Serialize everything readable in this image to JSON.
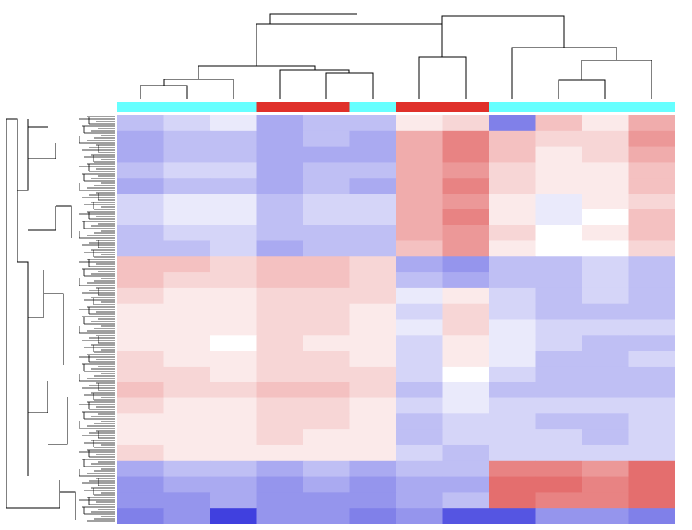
{
  "chart_data": {
    "type": "heatmap",
    "vlim": [
      -1,
      1
    ],
    "color_low": "#2b2bdb",
    "color_mid": "#ffffff",
    "color_high": "#d93030",
    "annotation_colors": [
      "#66ffff",
      "#66ffff",
      "#66ffff",
      "#e0302a",
      "#e0302a",
      "#66ffff",
      "#e0302a",
      "#e0302a",
      "#66ffff",
      "#66ffff",
      "#66ffff",
      "#66ffff"
    ],
    "values": [
      [
        -0.3,
        -0.2,
        -0.1,
        -0.4,
        -0.3,
        -0.3,
        0.1,
        0.2,
        -0.6,
        0.3,
        0.1,
        0.4
      ],
      [
        -0.4,
        -0.3,
        -0.3,
        -0.4,
        -0.3,
        -0.4,
        0.4,
        0.6,
        0.3,
        0.2,
        0.2,
        0.5
      ],
      [
        -0.4,
        -0.3,
        -0.3,
        -0.4,
        -0.4,
        -0.4,
        0.4,
        0.6,
        0.3,
        0.1,
        0.2,
        0.4
      ],
      [
        -0.3,
        -0.2,
        -0.2,
        -0.4,
        -0.3,
        -0.3,
        0.4,
        0.5,
        0.2,
        0.1,
        0.1,
        0.3
      ],
      [
        -0.4,
        -0.3,
        -0.3,
        -0.4,
        -0.3,
        -0.4,
        0.4,
        0.6,
        0.2,
        0.1,
        0.1,
        0.3
      ],
      [
        -0.2,
        -0.1,
        -0.1,
        -0.3,
        -0.2,
        -0.2,
        0.4,
        0.5,
        0.1,
        -0.1,
        0.1,
        0.2
      ],
      [
        -0.2,
        -0.1,
        -0.1,
        -0.3,
        -0.2,
        -0.2,
        0.4,
        0.6,
        0.1,
        -0.1,
        0.0,
        0.3
      ],
      [
        -0.3,
        -0.2,
        -0.2,
        -0.3,
        -0.3,
        -0.3,
        0.4,
        0.5,
        0.2,
        0.0,
        0.1,
        0.3
      ],
      [
        -0.3,
        -0.3,
        -0.2,
        -0.4,
        -0.3,
        -0.3,
        0.3,
        0.5,
        0.1,
        0.0,
        0.0,
        0.2
      ],
      [
        0.3,
        0.3,
        0.2,
        0.3,
        0.3,
        0.2,
        -0.4,
        -0.5,
        -0.3,
        -0.3,
        -0.2,
        -0.3
      ],
      [
        0.3,
        0.2,
        0.2,
        0.3,
        0.3,
        0.2,
        -0.3,
        -0.4,
        -0.3,
        -0.3,
        -0.2,
        -0.3
      ],
      [
        0.2,
        0.1,
        0.1,
        0.2,
        0.2,
        0.2,
        -0.1,
        0.1,
        -0.2,
        -0.3,
        -0.2,
        -0.3
      ],
      [
        0.1,
        0.1,
        0.1,
        0.2,
        0.2,
        0.1,
        -0.2,
        0.2,
        -0.2,
        -0.3,
        -0.3,
        -0.3
      ],
      [
        0.1,
        0.1,
        0.1,
        0.2,
        0.2,
        0.1,
        -0.1,
        0.2,
        -0.1,
        -0.2,
        -0.2,
        -0.2
      ],
      [
        0.1,
        0.1,
        0.0,
        0.2,
        0.1,
        0.1,
        -0.2,
        0.1,
        -0.1,
        -0.2,
        -0.3,
        -0.3
      ],
      [
        0.2,
        0.1,
        0.1,
        0.2,
        0.2,
        0.1,
        -0.2,
        0.1,
        -0.1,
        -0.3,
        -0.3,
        -0.2
      ],
      [
        0.2,
        0.2,
        0.1,
        0.2,
        0.2,
        0.2,
        -0.2,
        0.0,
        -0.2,
        -0.3,
        -0.3,
        -0.3
      ],
      [
        0.3,
        0.2,
        0.2,
        0.3,
        0.3,
        0.2,
        -0.3,
        -0.1,
        -0.3,
        -0.3,
        -0.3,
        -0.3
      ],
      [
        0.2,
        0.1,
        0.1,
        0.2,
        0.2,
        0.1,
        -0.2,
        -0.1,
        -0.2,
        -0.2,
        -0.2,
        -0.2
      ],
      [
        0.1,
        0.1,
        0.1,
        0.2,
        0.2,
        0.1,
        -0.3,
        -0.2,
        -0.2,
        -0.3,
        -0.3,
        -0.2
      ],
      [
        0.1,
        0.1,
        0.1,
        0.2,
        0.1,
        0.1,
        -0.3,
        -0.2,
        -0.2,
        -0.2,
        -0.3,
        -0.2
      ],
      [
        0.2,
        0.1,
        0.1,
        0.1,
        0.1,
        0.1,
        -0.2,
        -0.3,
        -0.2,
        -0.2,
        -0.2,
        -0.2
      ],
      [
        -0.4,
        -0.3,
        -0.3,
        -0.4,
        -0.3,
        -0.4,
        -0.3,
        -0.3,
        0.6,
        0.6,
        0.5,
        0.7
      ],
      [
        -0.5,
        -0.4,
        -0.4,
        -0.5,
        -0.4,
        -0.5,
        -0.4,
        -0.4,
        0.7,
        0.7,
        0.6,
        0.7
      ],
      [
        -0.5,
        -0.5,
        -0.4,
        -0.5,
        -0.5,
        -0.5,
        -0.4,
        -0.3,
        0.7,
        0.6,
        0.6,
        0.7
      ],
      [
        -0.6,
        -0.5,
        -0.9,
        -0.5,
        -0.5,
        -0.6,
        -0.5,
        -0.8,
        -0.8,
        -0.5,
        -0.5,
        -0.6
      ]
    ]
  }
}
